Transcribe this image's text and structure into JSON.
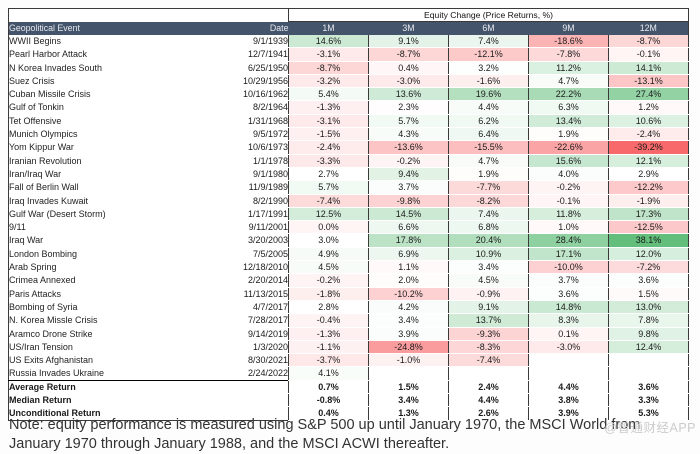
{
  "chart_data": {
    "type": "table",
    "title": "Equity Change (Price Returns, %)",
    "columns": [
      "Geopolitical Event",
      "Date",
      "1M",
      "3M",
      "6M",
      "9M",
      "12M"
    ],
    "rows": [
      {
        "event": "WWII Begins",
        "date": "9/1/1939",
        "values": [
          14.6,
          9.1,
          7.4,
          -18.6,
          -8.7
        ]
      },
      {
        "event": "Pearl Harbor Attack",
        "date": "12/7/1941",
        "values": [
          -3.1,
          -8.7,
          -12.1,
          -7.8,
          -0.1
        ]
      },
      {
        "event": "N Korea Invades South",
        "date": "6/25/1950",
        "values": [
          -8.7,
          0.4,
          3.2,
          11.2,
          14.1
        ]
      },
      {
        "event": "Suez Crisis",
        "date": "10/29/1956",
        "values": [
          -3.2,
          -3.0,
          -1.6,
          4.7,
          -13.1
        ]
      },
      {
        "event": "Cuban Missile Crisis",
        "date": "10/16/1962",
        "values": [
          5.4,
          13.6,
          19.6,
          22.2,
          27.4
        ]
      },
      {
        "event": "Gulf of Tonkin",
        "date": "8/2/1964",
        "values": [
          -1.3,
          2.3,
          4.4,
          6.3,
          1.2
        ]
      },
      {
        "event": "Tet Offensive",
        "date": "1/31/1968",
        "values": [
          -3.1,
          5.7,
          6.2,
          13.4,
          10.6
        ]
      },
      {
        "event": "Munich Olympics",
        "date": "9/5/1972",
        "values": [
          -1.5,
          4.3,
          6.4,
          1.9,
          -2.4
        ]
      },
      {
        "event": "Yom Kippur War",
        "date": "10/6/1973",
        "values": [
          -2.4,
          -13.6,
          -15.5,
          -22.6,
          -39.2
        ]
      },
      {
        "event": "Iranian Revolution",
        "date": "1/1/1978",
        "values": [
          -3.3,
          -0.2,
          4.7,
          15.6,
          12.1
        ]
      },
      {
        "event": "Iran/Iraq War",
        "date": "9/1/1980",
        "values": [
          2.7,
          9.4,
          1.9,
          4.0,
          2.9
        ]
      },
      {
        "event": "Fall of Berlin Wall",
        "date": "11/9/1989",
        "values": [
          5.7,
          3.7,
          -7.7,
          -0.2,
          -12.2
        ]
      },
      {
        "event": "Iraq Invades Kuwait",
        "date": "8/2/1990",
        "values": [
          -7.4,
          -9.8,
          -8.2,
          -0.1,
          -1.9
        ]
      },
      {
        "event": "Gulf War (Desert Storm)",
        "date": "1/17/1991",
        "values": [
          12.5,
          14.5,
          7.4,
          11.8,
          17.3
        ]
      },
      {
        "event": "9/11",
        "date": "9/11/2001",
        "values": [
          0.0,
          6.6,
          6.8,
          1.0,
          -12.5
        ]
      },
      {
        "event": "Iraq War",
        "date": "3/20/2003",
        "values": [
          3.0,
          17.8,
          20.4,
          28.4,
          38.1
        ]
      },
      {
        "event": "London Bombing",
        "date": "7/5/2005",
        "values": [
          4.9,
          6.9,
          10.9,
          17.1,
          12.0
        ]
      },
      {
        "event": "Arab Spring",
        "date": "12/18/2010",
        "values": [
          4.5,
          1.1,
          3.4,
          -10.0,
          -7.2
        ]
      },
      {
        "event": "Crimea Annexed",
        "date": "2/20/2014",
        "values": [
          -0.2,
          2.0,
          4.5,
          3.7,
          3.6
        ]
      },
      {
        "event": "Paris Attacks",
        "date": "11/13/2015",
        "values": [
          -1.8,
          -10.2,
          -0.9,
          3.6,
          1.5
        ]
      },
      {
        "event": "Bombing of Syria",
        "date": "4/7/2017",
        "values": [
          2.8,
          4.2,
          9.1,
          14.8,
          13.0
        ]
      },
      {
        "event": "N. Korea Missle Crisis",
        "date": "7/28/2017",
        "values": [
          -0.4,
          3.4,
          13.7,
          8.3,
          7.8
        ]
      },
      {
        "event": "Aramco Drone Strike",
        "date": "9/14/2019",
        "values": [
          -1.3,
          3.9,
          -9.3,
          0.1,
          9.8
        ]
      },
      {
        "event": "US/Iran Tension",
        "date": "1/3/2020",
        "values": [
          -1.1,
          -24.8,
          -8.3,
          -3.0,
          12.4
        ]
      },
      {
        "event": "US Exits Afghanistan",
        "date": "8/30/2021",
        "values": [
          -3.7,
          -1.0,
          -7.4,
          null,
          null
        ]
      },
      {
        "event": "Russia Invades Ukraine",
        "date": "2/24/2022",
        "values": [
          4.1,
          null,
          null,
          null,
          null
        ]
      }
    ],
    "summary_rows": [
      {
        "label": "Average Return",
        "values": [
          0.7,
          1.5,
          2.4,
          4.4,
          3.6
        ]
      },
      {
        "label": "Median Return",
        "values": [
          -0.8,
          3.4,
          4.4,
          3.8,
          3.3
        ]
      },
      {
        "label": "Unconditional Return",
        "values": [
          0.4,
          1.3,
          2.6,
          3.9,
          5.3
        ]
      }
    ],
    "value_range": {
      "min": -39.2,
      "mid": 2.8,
      "max": 38.1
    },
    "legend_position": "none",
    "grid": "off"
  },
  "colors": {
    "header_bg": "#44546A",
    "header_text": "#E7EAF0",
    "heat_red": "#F8696B",
    "heat_mid": "#FFFFFF",
    "heat_green": "#63BE7B",
    "border": "#3A3A3A",
    "watermark_gray": "#CCCCCC"
  },
  "note": "Note: equity performance is measured using S&P 500 up until January 1970, the MSCI World from January 1970 through January 1988, and the MSCI ACWI thereafter.",
  "watermark": "@智通财经APP"
}
